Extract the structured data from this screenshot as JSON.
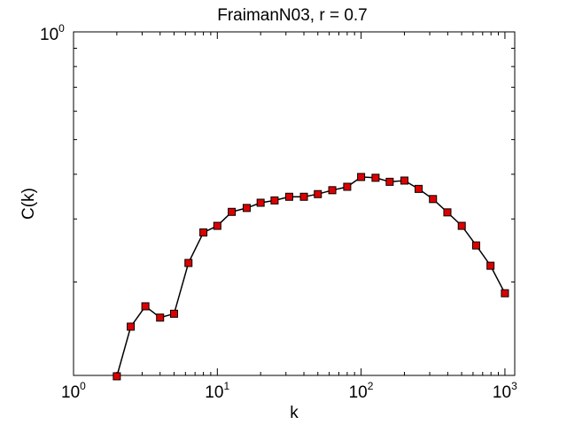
{
  "chart_data": {
    "type": "line",
    "title": "FraimanN03, r = 0.7",
    "xlabel": "k",
    "ylabel": "C(k)",
    "xscale": "log",
    "yscale": "log",
    "xlim": [
      1,
      1170
    ],
    "ylim": [
      0.1096,
      1
    ],
    "x_ticks": [
      {
        "base": "10",
        "exp": "0",
        "value": 1
      },
      {
        "base": "10",
        "exp": "1",
        "value": 10
      },
      {
        "base": "10",
        "exp": "2",
        "value": 100
      },
      {
        "base": "10",
        "exp": "3",
        "value": 1000
      }
    ],
    "y_ticks": [
      {
        "base": "10",
        "exp": "0",
        "value": 1
      }
    ],
    "grid": false,
    "series": [
      {
        "marker": "square",
        "marker_color": "#dd0000",
        "line_color": "#000000",
        "x": [
          2,
          2.5,
          3.16,
          4,
          5,
          6.3,
          8,
          10,
          12.6,
          16,
          20,
          25,
          31.6,
          40,
          50,
          63,
          80,
          100,
          126,
          158,
          200,
          251,
          316,
          398,
          501,
          631,
          794,
          1000
        ],
        "y": [
          0.109,
          0.15,
          0.171,
          0.159,
          0.163,
          0.226,
          0.275,
          0.287,
          0.314,
          0.322,
          0.333,
          0.338,
          0.346,
          0.346,
          0.352,
          0.361,
          0.369,
          0.393,
          0.391,
          0.381,
          0.384,
          0.364,
          0.341,
          0.313,
          0.287,
          0.253,
          0.222,
          0.186
        ]
      }
    ]
  }
}
